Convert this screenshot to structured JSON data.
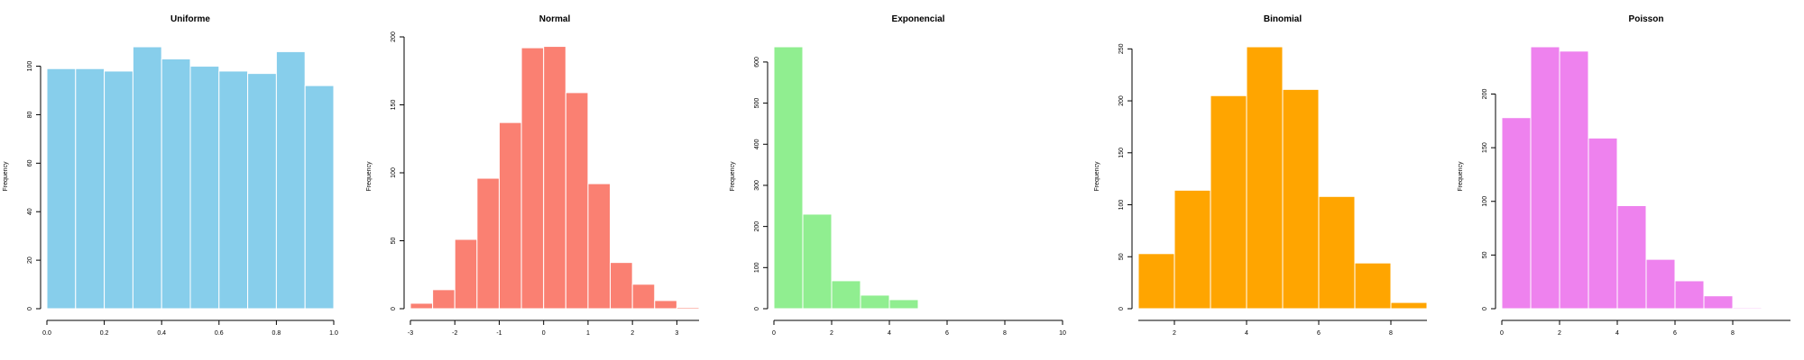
{
  "chart_data": [
    {
      "type": "bar",
      "title": "Uniforme",
      "ylabel": "Frequency",
      "color": "#87CEEB",
      "bins": [
        [
          0.0,
          0.1
        ],
        [
          0.1,
          0.2
        ],
        [
          0.2,
          0.3
        ],
        [
          0.3,
          0.4
        ],
        [
          0.4,
          0.5
        ],
        [
          0.5,
          0.6
        ],
        [
          0.6,
          0.7
        ],
        [
          0.7,
          0.8
        ],
        [
          0.8,
          0.9
        ],
        [
          0.9,
          1.0
        ]
      ],
      "values": [
        99,
        99,
        98,
        108,
        103,
        100,
        98,
        97,
        106,
        92
      ],
      "xlim": [
        0.0,
        1.0
      ],
      "ylim": [
        0,
        110
      ],
      "xticks": [
        0.0,
        0.2,
        0.4,
        0.6,
        0.8,
        1.0
      ],
      "xtick_labels": [
        "0.0",
        "0.2",
        "0.4",
        "0.6",
        "0.8",
        "1.0"
      ],
      "yticks": [
        0,
        20,
        40,
        60,
        80,
        100
      ],
      "ytick_labels": [
        "0",
        "20",
        "40",
        "60",
        "80",
        "100"
      ]
    },
    {
      "type": "bar",
      "title": "Normal",
      "ylabel": "Frequency",
      "color": "#FA8072",
      "bins": [
        [
          -3.0,
          -2.5
        ],
        [
          -2.5,
          -2.0
        ],
        [
          -2.0,
          -1.5
        ],
        [
          -1.5,
          -1.0
        ],
        [
          -1.0,
          -0.5
        ],
        [
          -0.5,
          0.0
        ],
        [
          0.0,
          0.5
        ],
        [
          0.5,
          1.0
        ],
        [
          1.0,
          1.5
        ],
        [
          1.5,
          2.0
        ],
        [
          2.0,
          2.5
        ],
        [
          2.5,
          3.0
        ],
        [
          3.0,
          3.5
        ]
      ],
      "values": [
        4,
        14,
        51,
        96,
        137,
        192,
        193,
        159,
        92,
        34,
        18,
        6,
        1
      ],
      "xlim": [
        -3.0,
        3.5
      ],
      "ylim": [
        0,
        200
      ],
      "xticks": [
        -3,
        -2,
        -1,
        0,
        1,
        2,
        3
      ],
      "xtick_labels": [
        "-3",
        "-2",
        "-1",
        "0",
        "1",
        "2",
        "3"
      ],
      "yticks": [
        0,
        50,
        100,
        150,
        200
      ],
      "ytick_labels": [
        "0",
        "50",
        "100",
        "150",
        "200"
      ]
    },
    {
      "type": "bar",
      "title": "Exponencial",
      "ylabel": "Frequency",
      "color": "#90EE90",
      "bins": [
        [
          0,
          1
        ],
        [
          1,
          2
        ],
        [
          2,
          3
        ],
        [
          3,
          4
        ],
        [
          4,
          5
        ]
      ],
      "values": [
        637,
        230,
        68,
        33,
        22
      ],
      "xlim": [
        0,
        10
      ],
      "ylim": [
        0,
        640
      ],
      "xticks": [
        0,
        2,
        4,
        6,
        8,
        10
      ],
      "xtick_labels": [
        "0",
        "2",
        "4",
        "6",
        "8",
        "10"
      ],
      "yticks": [
        0,
        100,
        200,
        300,
        400,
        500,
        600
      ],
      "ytick_labels": [
        "0",
        "100",
        "200",
        "300",
        "400",
        "500",
        "600"
      ]
    },
    {
      "type": "bar",
      "title": "Binomial",
      "ylabel": "Frequency",
      "color": "#FFA500",
      "bins": [
        [
          1,
          2
        ],
        [
          2,
          3
        ],
        [
          3,
          4
        ],
        [
          4,
          5
        ],
        [
          5,
          6
        ],
        [
          6,
          7
        ],
        [
          7,
          8
        ],
        [
          8,
          9
        ]
      ],
      "values": [
        53,
        114,
        205,
        252,
        211,
        108,
        44,
        6
      ],
      "xlim": [
        1,
        9
      ],
      "ylim": [
        0,
        250
      ],
      "xticks": [
        2,
        4,
        6,
        8
      ],
      "xtick_labels": [
        "2",
        "4",
        "6",
        "8"
      ],
      "yticks": [
        0,
        50,
        100,
        150,
        200,
        250
      ],
      "ytick_labels": [
        "0",
        "50",
        "100",
        "150",
        "200",
        "250"
      ]
    },
    {
      "type": "bar",
      "title": "Poisson",
      "ylabel": "Frequency",
      "color": "#EE82EE",
      "bins": [
        [
          0,
          1
        ],
        [
          1,
          2
        ],
        [
          2,
          3
        ],
        [
          3,
          4
        ],
        [
          4,
          5
        ],
        [
          5,
          6
        ],
        [
          6,
          7
        ],
        [
          7,
          8
        ],
        [
          8,
          9
        ]
      ],
      "values": [
        178,
        244,
        240,
        159,
        96,
        46,
        26,
        12,
        1
      ],
      "xlim": [
        0,
        10
      ],
      "ylim": [
        0,
        250
      ],
      "xticks": [
        0,
        2,
        4,
        6,
        8
      ],
      "xtick_labels": [
        "0",
        "2",
        "4",
        "6",
        "8"
      ],
      "yticks": [
        0,
        50,
        100,
        150,
        200
      ],
      "ytick_labels": [
        "0",
        "50",
        "100",
        "150",
        "200"
      ]
    }
  ]
}
